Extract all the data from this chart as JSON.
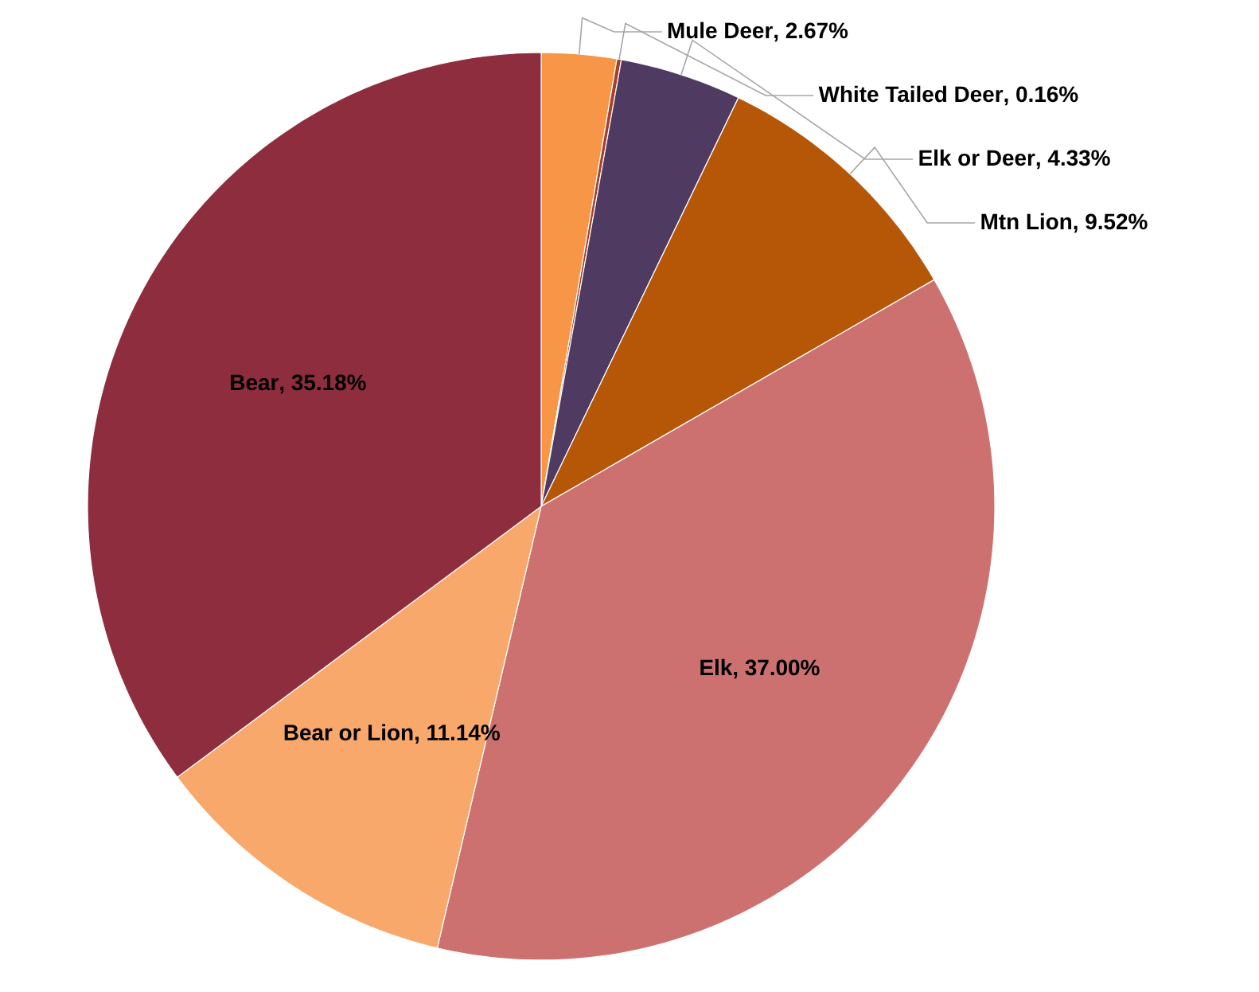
{
  "chart_data": {
    "type": "pie",
    "categories": [
      "Mule Deer",
      "White Tailed Deer",
      "Elk or Deer",
      "Mtn Lion",
      "Elk",
      "Bear or Lion",
      "Bear"
    ],
    "values": [
      2.67,
      0.16,
      4.33,
      9.52,
      37.0,
      11.14,
      35.18
    ],
    "colors": [
      "#f79646",
      "#a5402d",
      "#4f3b62",
      "#b65708",
      "#cd7170",
      "#f9a86b",
      "#8e2d3d"
    ],
    "value_labels": [
      ", 2.67%",
      ", 0.16%",
      ", 4.33%",
      ", 9.52%",
      ", 37.00%",
      ", 11.14%",
      ", 35.18%"
    ]
  }
}
